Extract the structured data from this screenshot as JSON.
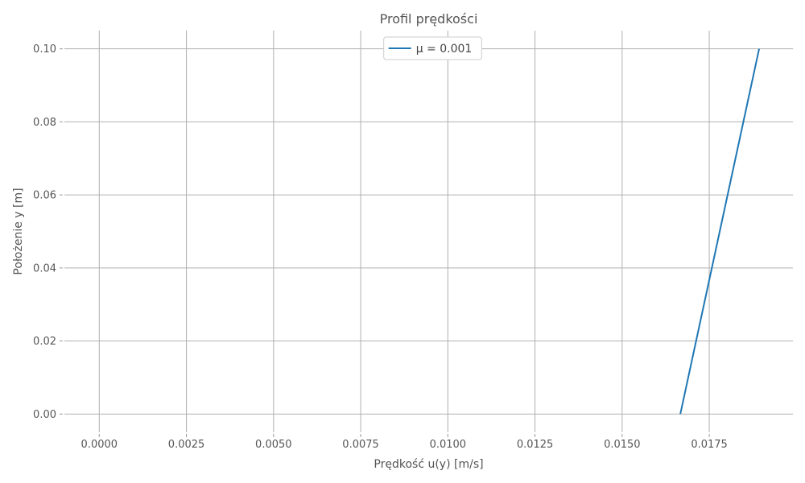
{
  "chart_data": {
    "type": "line",
    "title": "Profil prędkości",
    "xlabel": "Prędkość u(y) [m/s]",
    "ylabel": "Położenie y [m]",
    "xlim": [
      -0.001,
      0.0199
    ],
    "ylim": [
      -0.005,
      0.105
    ],
    "xticks": [
      0.0,
      0.0025,
      0.005,
      0.0075,
      0.01,
      0.0125,
      0.015,
      0.0175
    ],
    "xtick_labels": [
      "0.0000",
      "0.0025",
      "0.0050",
      "0.0075",
      "0.0100",
      "0.0125",
      "0.0150",
      "0.0175"
    ],
    "yticks": [
      0.0,
      0.02,
      0.04,
      0.06,
      0.08,
      0.1
    ],
    "ytick_labels": [
      "0.00",
      "0.02",
      "0.04",
      "0.06",
      "0.08",
      "0.10"
    ],
    "grid": true,
    "legend_position": "top-center",
    "series": [
      {
        "name": "μ = 0.001",
        "color": "#1f77b4",
        "points": [
          {
            "x": 0.01667,
            "y": 0.0
          },
          {
            "x": 0.01893,
            "y": 0.1
          }
        ]
      }
    ]
  }
}
